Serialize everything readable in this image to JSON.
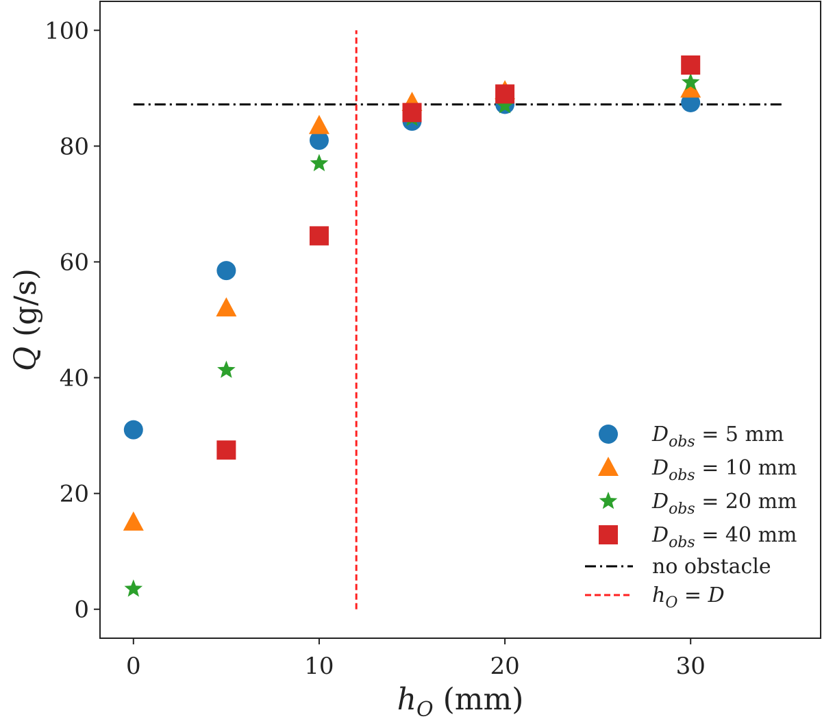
{
  "chart_data": {
    "type": "scatter",
    "xlabel": "h_O (mm)",
    "ylabel": "Q (g/s)",
    "xlim": [
      -1.8,
      37
    ],
    "ylim": [
      -5,
      105
    ],
    "xticks": [
      0,
      10,
      20,
      30
    ],
    "yticks": [
      0,
      20,
      40,
      60,
      80,
      100
    ],
    "series": [
      {
        "name": "D_obs = 5 mm",
        "marker": "circle",
        "color": "#1f77b4",
        "x": [
          0,
          5,
          10,
          15,
          20,
          30
        ],
        "y": [
          31,
          58.5,
          81,
          84.3,
          87.2,
          87.5
        ]
      },
      {
        "name": "D_obs = 10 mm",
        "marker": "triangle",
        "color": "#ff7f0e",
        "x": [
          0,
          5,
          10,
          15,
          20,
          30
        ],
        "y": [
          15,
          52,
          83.5,
          87.5,
          89.5,
          89.8
        ]
      },
      {
        "name": "D_obs = 20 mm",
        "marker": "star",
        "color": "#2ca02c",
        "x": [
          0,
          5,
          10,
          15,
          20,
          30
        ],
        "y": [
          3.5,
          41.3,
          77,
          84.8,
          87,
          91
        ]
      },
      {
        "name": "D_obs = 40 mm",
        "marker": "square",
        "color": "#d62728",
        "x": [
          5,
          10,
          15,
          20,
          30
        ],
        "y": [
          27.5,
          64.5,
          85.8,
          89,
          94
        ]
      }
    ],
    "reference_lines": [
      {
        "name": "no obstacle",
        "orientation": "horizontal",
        "value": 87.2,
        "x_range": [
          0,
          35
        ],
        "style": "dashdot",
        "color": "#000000"
      },
      {
        "name": "h_O = D",
        "orientation": "vertical",
        "value": 12,
        "y_range": [
          0,
          100
        ],
        "style": "dashed",
        "color": "#ff2020"
      }
    ],
    "legend_position": "lower-right",
    "grid": false
  }
}
